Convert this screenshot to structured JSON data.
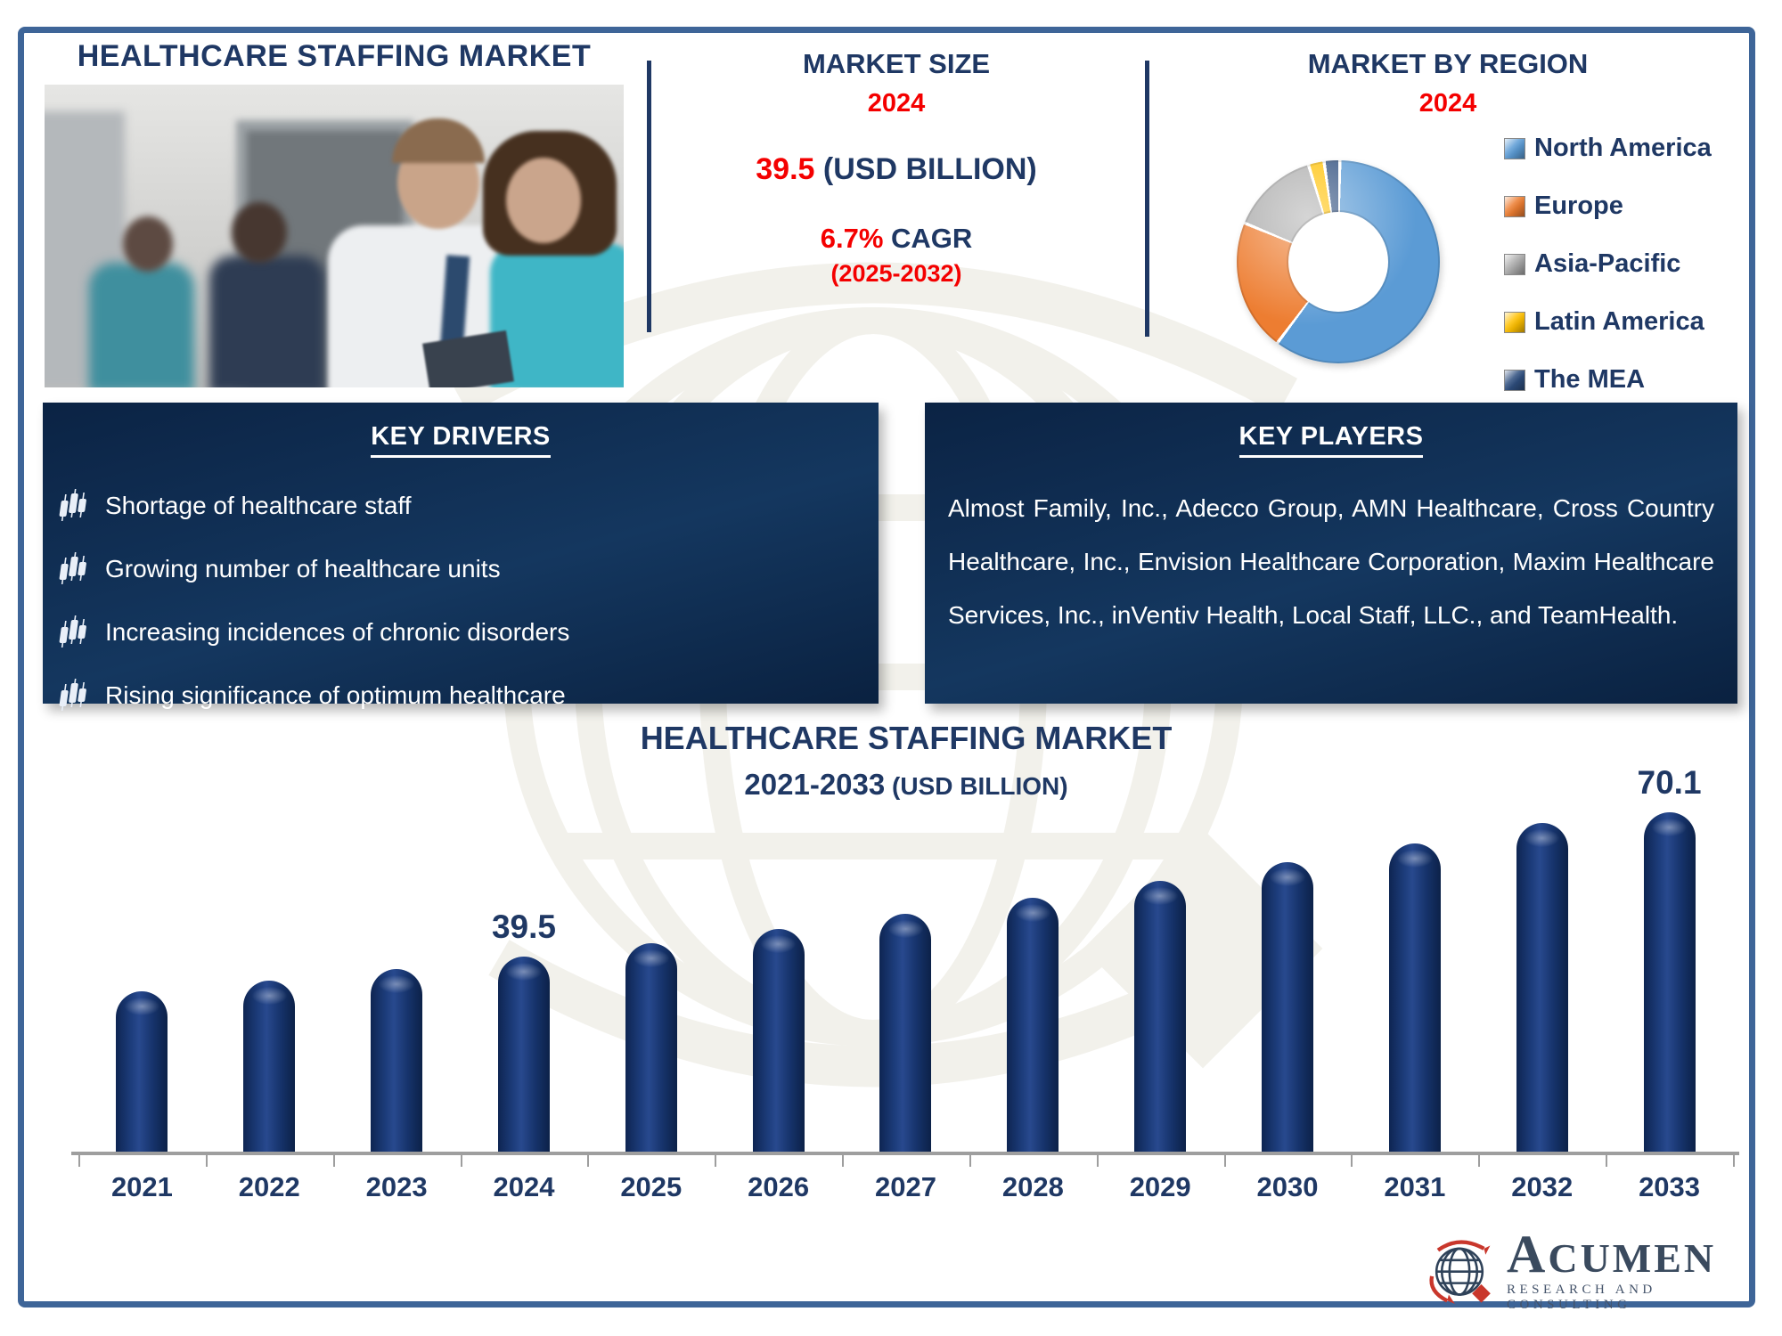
{
  "page": {
    "accent_navy": "#1F3864",
    "accent_red": "#F40000",
    "border_color": "#3E6598"
  },
  "header": {
    "title": "HEALTHCARE STAFFING MARKET"
  },
  "market_size": {
    "title": "MARKET SIZE",
    "year": "2024",
    "value": "39.5",
    "value_unit": " (USD BILLION)",
    "cagr_value": "6.7%",
    "cagr_label": " CAGR",
    "cagr_period": "(2025-2032)"
  },
  "region_chart": {
    "title": "MARKET BY REGION",
    "year": "2024",
    "type": "donut",
    "segments": [
      {
        "label": "North America",
        "color": "#5B9BD5",
        "value": 60
      },
      {
        "label": "Europe",
        "color": "#ED7D31",
        "value": 21
      },
      {
        "label": "Asia-Pacific",
        "color": "#ABABAB",
        "value": 14
      },
      {
        "label": "Latin America",
        "color": "#FFC000",
        "value": 2.5
      },
      {
        "label": "The MEA",
        "color": "#2E4E7E",
        "value": 2.5
      }
    ],
    "note": "segment shares estimated from donut arc angles; only region names shown in image"
  },
  "key_drivers": {
    "title": "KEY DRIVERS",
    "items": [
      "Shortage of healthcare staff",
      "Growing number of healthcare units",
      "Increasing incidences of chronic disorders",
      "Rising significance of optimum healthcare"
    ]
  },
  "key_players": {
    "title": "KEY PLAYERS",
    "text": "Almost Family, Inc., Adecco Group, AMN Healthcare, Cross Country Healthcare, Inc., Envision Healthcare Corporation, Maxim Healthcare Services, Inc., inVentiv Health, Local Staff, LLC., and TeamHealth."
  },
  "chart_data": {
    "type": "bar",
    "title": "HEALTHCARE STAFFING MARKET",
    "subtitle": "2021-2033",
    "subtitle_unit": " (USD BILLION)",
    "categories": [
      "2021",
      "2022",
      "2023",
      "2024",
      "2025",
      "2026",
      "2027",
      "2028",
      "2029",
      "2030",
      "2031",
      "2032",
      "2033"
    ],
    "values": [
      32.5,
      34.7,
      37.0,
      39.5,
      42.1,
      45.0,
      48.0,
      51.2,
      54.6,
      58.3,
      62.2,
      66.3,
      70.1
    ],
    "labeled_points": {
      "2024": "39.5",
      "2033": "70.1"
    },
    "bar_color": "#142E63",
    "ylim": [
      0,
      78
    ],
    "grid": false,
    "note": "only 2024 (39.5) and 2033 (70.1) are labeled in the image; other values estimated from bar heights"
  },
  "logo": {
    "name": "ACUMEN",
    "subtext": "RESEARCH AND CONSULTING"
  }
}
